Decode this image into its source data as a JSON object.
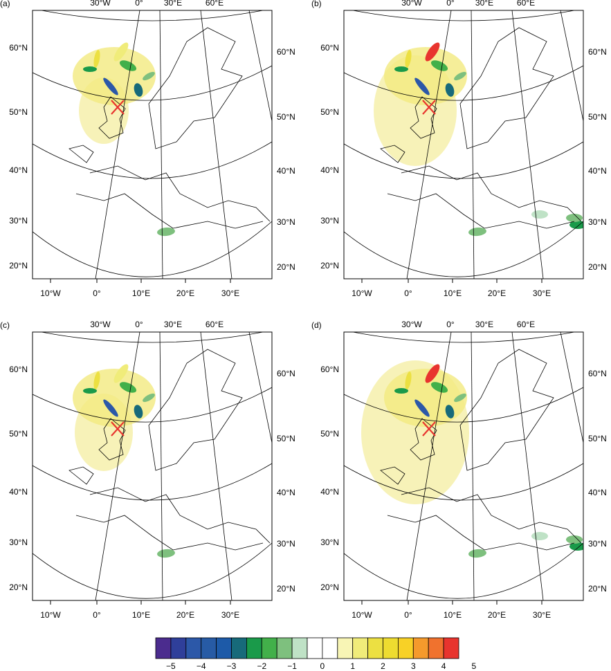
{
  "panels": [
    {
      "label": "(a)"
    },
    {
      "label": "(b)"
    },
    {
      "label": "(c)"
    },
    {
      "label": "(d)"
    }
  ],
  "axes": {
    "top": [
      "30°W",
      "0°",
      "30°E",
      "60°E"
    ],
    "bottom": [
      "10°W",
      "0°",
      "10°E",
      "20°E",
      "30°E"
    ],
    "left": [
      "60°N",
      "50°N",
      "40°N",
      "30°N",
      "20°N"
    ],
    "right": [
      "60°N",
      "50°N",
      "40°N",
      "30°N",
      "20°N"
    ]
  },
  "colorbar": {
    "colors": [
      "#4b2c8e",
      "#2f3f9a",
      "#2c58a8",
      "#275ba5",
      "#1d5aa8",
      "#176a7a",
      "#1a9a4a",
      "#42b04a",
      "#7ec07e",
      "#bfe2c6",
      "#ffffff",
      "#ffffff",
      "#f8f5b5",
      "#f0ec7a",
      "#ece042",
      "#eedc30",
      "#f8d126",
      "#f59a2c",
      "#f0722e",
      "#e8342e"
    ],
    "labels": [
      "−5",
      "−4",
      "−3",
      "−2",
      "−1",
      "0",
      "1",
      "2",
      "3",
      "4",
      "5"
    ]
  }
}
